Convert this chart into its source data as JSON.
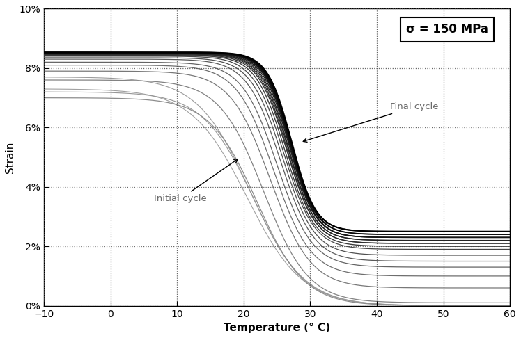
{
  "xlabel": "Temperature (° C)",
  "ylabel": "Strain",
  "xlim": [
    -10,
    60
  ],
  "ylim": [
    0.0,
    0.1
  ],
  "xticks": [
    -10,
    0,
    10,
    20,
    30,
    40,
    50,
    60
  ],
  "yticks": [
    0,
    0.02,
    0.04,
    0.06,
    0.08,
    0.1
  ],
  "ytick_labels": [
    "0%",
    "2%",
    "4%",
    "6%",
    "8%",
    "10%"
  ],
  "sigma_text": "σ = 150 MPa",
  "annotation_initial": "Initial cycle",
  "annotation_final": "Final cycle",
  "bg_color": "#ffffff",
  "n_cycles": 20,
  "cycles": [
    {
      "s_high": 0.07,
      "s_low": 0.0,
      "T_mid": 22.0,
      "k": 0.28,
      "gray": 140,
      "lw": 0.9
    },
    {
      "s_high": 0.076,
      "s_low": 0.001,
      "T_mid": 23.0,
      "k": 0.3,
      "gray": 130,
      "lw": 0.9
    },
    {
      "s_high": 0.079,
      "s_low": 0.006,
      "T_mid": 24.0,
      "k": 0.33,
      "gray": 120,
      "lw": 0.9
    },
    {
      "s_high": 0.081,
      "s_low": 0.01,
      "T_mid": 24.5,
      "k": 0.36,
      "gray": 110,
      "lw": 0.9
    },
    {
      "s_high": 0.082,
      "s_low": 0.013,
      "T_mid": 25.0,
      "k": 0.38,
      "gray": 100,
      "lw": 0.9
    },
    {
      "s_high": 0.083,
      "s_low": 0.015,
      "T_mid": 25.5,
      "k": 0.4,
      "gray": 90,
      "lw": 0.9
    },
    {
      "s_high": 0.0835,
      "s_low": 0.017,
      "T_mid": 25.8,
      "k": 0.42,
      "gray": 80,
      "lw": 0.9
    },
    {
      "s_high": 0.084,
      "s_low": 0.019,
      "T_mid": 26.0,
      "k": 0.44,
      "gray": 70,
      "lw": 0.9
    },
    {
      "s_high": 0.0843,
      "s_low": 0.02,
      "T_mid": 26.2,
      "k": 0.46,
      "gray": 60,
      "lw": 1.0
    },
    {
      "s_high": 0.0845,
      "s_low": 0.021,
      "T_mid": 26.4,
      "k": 0.47,
      "gray": 50,
      "lw": 1.0
    },
    {
      "s_high": 0.0847,
      "s_low": 0.021,
      "T_mid": 26.5,
      "k": 0.48,
      "gray": 45,
      "lw": 1.0
    },
    {
      "s_high": 0.0848,
      "s_low": 0.022,
      "T_mid": 26.6,
      "k": 0.49,
      "gray": 40,
      "lw": 1.0
    },
    {
      "s_high": 0.0849,
      "s_low": 0.022,
      "T_mid": 26.7,
      "k": 0.5,
      "gray": 35,
      "lw": 1.0
    },
    {
      "s_high": 0.085,
      "s_low": 0.023,
      "T_mid": 26.8,
      "k": 0.51,
      "gray": 30,
      "lw": 1.0
    },
    {
      "s_high": 0.0851,
      "s_low": 0.023,
      "T_mid": 26.9,
      "k": 0.52,
      "gray": 25,
      "lw": 1.1
    },
    {
      "s_high": 0.0851,
      "s_low": 0.023,
      "T_mid": 27.0,
      "k": 0.52,
      "gray": 20,
      "lw": 1.1
    },
    {
      "s_high": 0.0852,
      "s_low": 0.024,
      "T_mid": 27.0,
      "k": 0.53,
      "gray": 15,
      "lw": 1.1
    },
    {
      "s_high": 0.0852,
      "s_low": 0.024,
      "T_mid": 27.1,
      "k": 0.53,
      "gray": 10,
      "lw": 1.2
    },
    {
      "s_high": 0.0853,
      "s_low": 0.025,
      "T_mid": 27.1,
      "k": 0.54,
      "gray": 5,
      "lw": 1.3
    },
    {
      "s_high": 0.0853,
      "s_low": 0.025,
      "T_mid": 27.2,
      "k": 0.55,
      "gray": 0,
      "lw": 1.5
    }
  ],
  "extra_low_curves": [
    {
      "s_high": 0.073,
      "s_low": 0.0,
      "T_mid": 20.5,
      "k": 0.24,
      "gray": 160,
      "lw": 0.8
    },
    {
      "s_high": 0.077,
      "s_low": 0.0,
      "T_mid": 21.0,
      "k": 0.25,
      "gray": 155,
      "lw": 0.8
    },
    {
      "s_high": 0.072,
      "s_low": 0.0,
      "T_mid": 21.5,
      "k": 0.26,
      "gray": 150,
      "lw": 0.8
    }
  ]
}
